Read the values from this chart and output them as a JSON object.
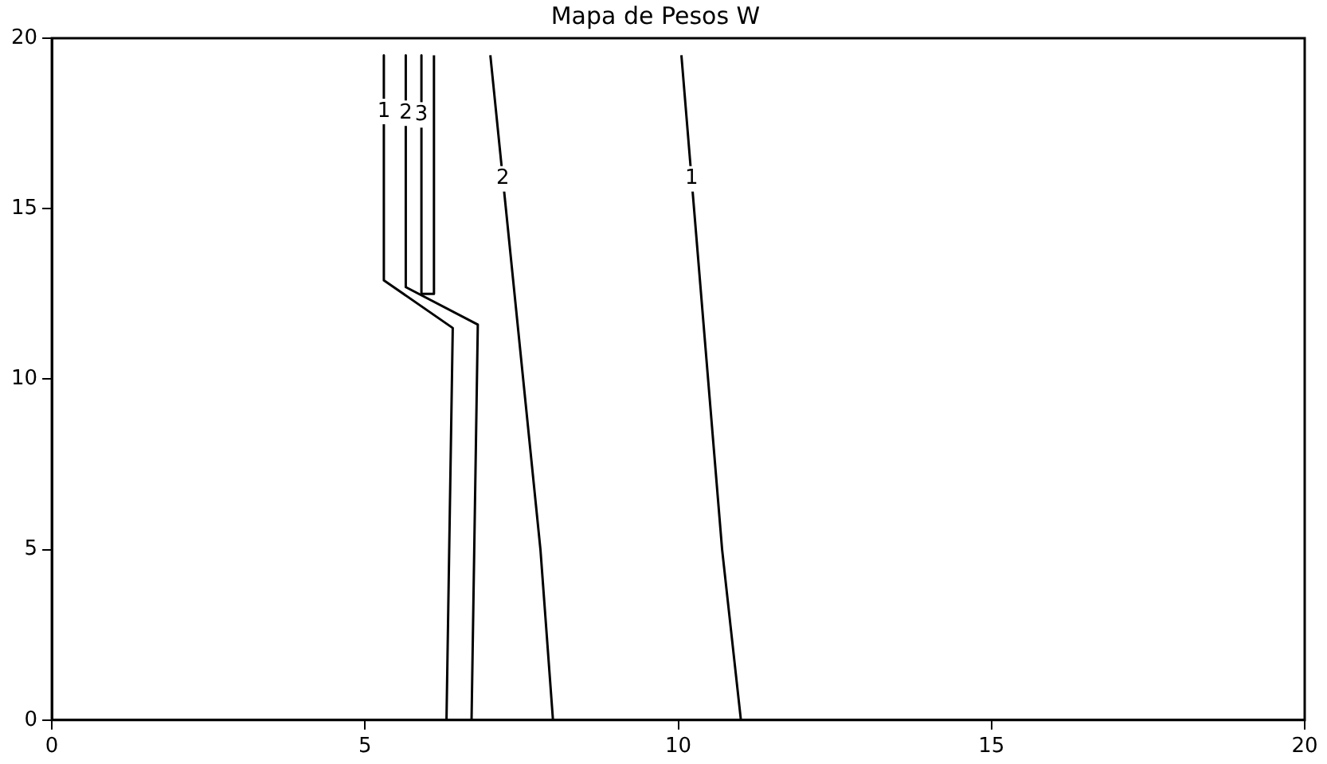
{
  "chart_data": {
    "type": "line",
    "title": "Mapa de Pesos W",
    "xlim": [
      0,
      20
    ],
    "xticks": [
      0,
      5,
      10,
      15,
      20
    ],
    "ylim": [
      0,
      20
    ],
    "yticks": [
      0,
      5,
      10,
      15,
      20
    ],
    "grid": false,
    "legend": false,
    "marker": "none",
    "line_style": "solid",
    "series": [
      {
        "name": "1",
        "color": "#000000",
        "x": [
          5.3,
          5.3,
          6.4,
          6.3
        ],
        "values": [
          19.5,
          12.9,
          11.5,
          0
        ]
      },
      {
        "name": "2",
        "color": "#000000",
        "x": [
          5.65,
          5.65,
          6.8,
          6.7
        ],
        "values": [
          19.5,
          12.7,
          11.6,
          0
        ]
      },
      {
        "name": "3",
        "color": "#000000",
        "x": [
          5.9,
          5.9,
          6.1,
          6.1
        ],
        "values": [
          19.5,
          12.5,
          12.5,
          19.5
        ]
      },
      {
        "name": "2",
        "color": "#000000",
        "x": [
          7.0,
          7.8,
          8.0
        ],
        "values": [
          19.5,
          5,
          0
        ]
      },
      {
        "name": "1",
        "color": "#000000",
        "x": [
          10.05,
          10.7,
          11.0
        ],
        "values": [
          19.5,
          5,
          0
        ]
      }
    ]
  }
}
